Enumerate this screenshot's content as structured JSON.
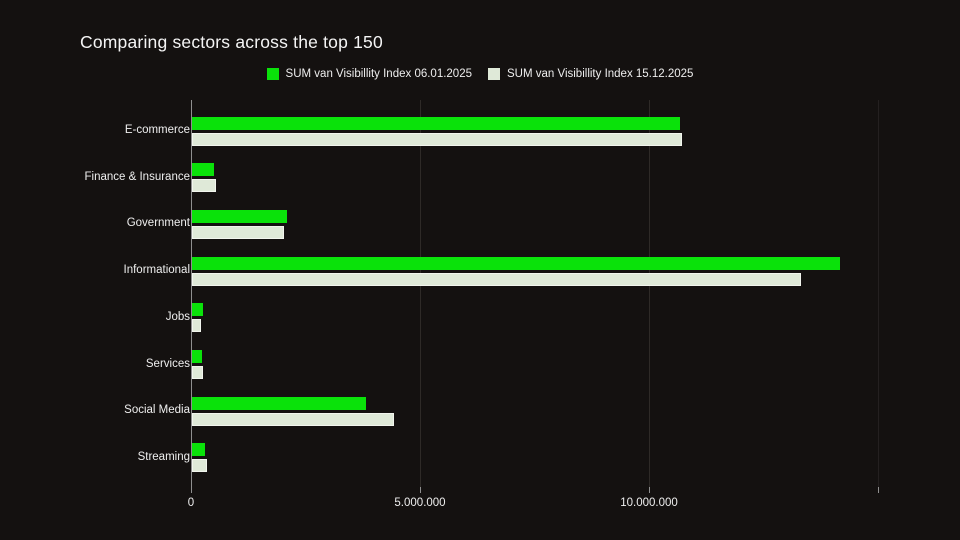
{
  "background_color": "#141110",
  "chart_data": {
    "type": "bar",
    "orientation": "horizontal",
    "title": "Comparing sectors across the top 150",
    "categories": [
      "E-commerce",
      "Finance & Insurance",
      "Government",
      "Informational",
      "Jobs",
      "Services",
      "Social Media",
      "Streaming"
    ],
    "series": [
      {
        "name": "SUM van Visibillity Index 06.01.2025",
        "color": "#0ae20a",
        "values": [
          10650000,
          470000,
          2070000,
          14150000,
          230000,
          210000,
          3800000,
          280000
        ]
      },
      {
        "name": "SUM van Visibillity Index 15.12.2025",
        "color": "#dfe9d8",
        "values": [
          10700000,
          530000,
          2000000,
          13300000,
          190000,
          230000,
          4400000,
          320000
        ]
      }
    ],
    "xlim": [
      0,
      15000000
    ],
    "x_ticks": [
      {
        "value": 0,
        "label": "0"
      },
      {
        "value": 5000000,
        "label": "5.000.000"
      },
      {
        "value": 10000000,
        "label": "10.000.000"
      },
      {
        "value": 15000000,
        "label": ""
      }
    ],
    "grid": "vertical",
    "legend_position": "top",
    "xlabel": "",
    "ylabel": ""
  }
}
